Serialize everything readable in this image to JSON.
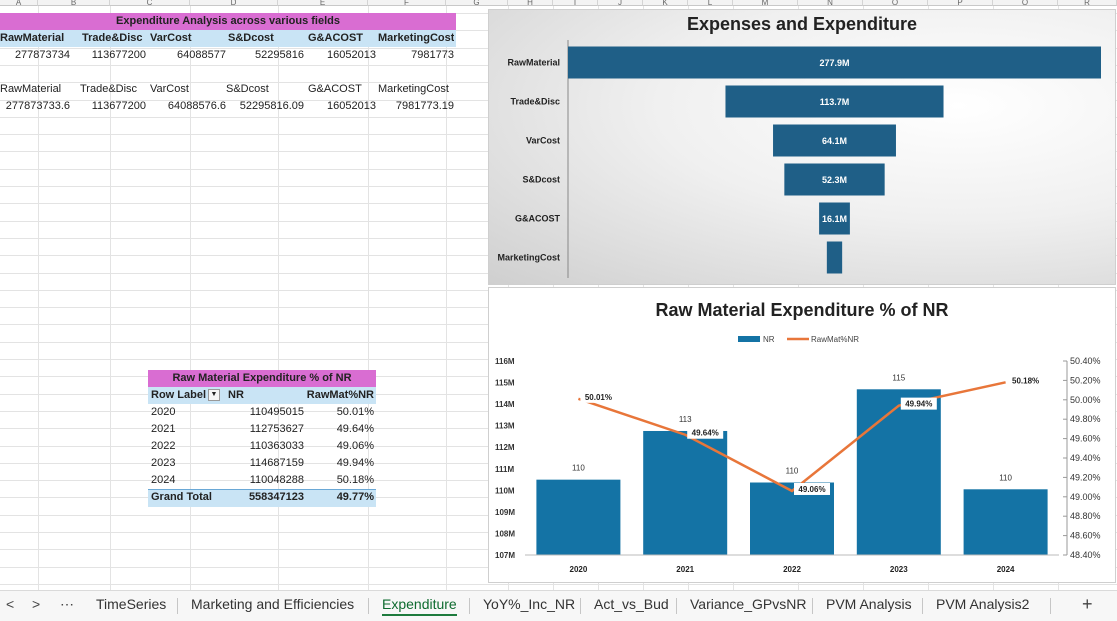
{
  "columns": [
    "A",
    "B",
    "C",
    "D",
    "E",
    "F",
    "G",
    "H",
    "I",
    "J",
    "K",
    "L",
    "M",
    "N",
    "O",
    "P",
    "Q",
    "R"
  ],
  "table1": {
    "title": "Expenditure Analysis across various fields",
    "headers": [
      "RawMaterial",
      "Trade&Disc",
      "VarCost",
      "S&Dcost",
      "G&ACOST",
      "MarketingCost"
    ],
    "values": [
      "277873734",
      "113677200",
      "64088577",
      "52295816",
      "16052013",
      "7981773"
    ]
  },
  "table2": {
    "headers": [
      "RawMaterial",
      "Trade&Disc",
      "VarCost",
      "S&Dcost",
      "G&ACOST",
      "MarketingCost"
    ],
    "values": [
      "277873733.6",
      "113677200",
      "64088576.6",
      "52295816.09",
      "16052013",
      "7981773.19"
    ]
  },
  "pivot": {
    "title": "Raw Material Expenditure % of NR",
    "col_row_label": "Row Label",
    "col_nr": "NR",
    "col_pct": "RawMat%NR",
    "rows": [
      {
        "year": "2020",
        "nr": "110495015",
        "pct": "50.01%"
      },
      {
        "year": "2021",
        "nr": "112753627",
        "pct": "49.64%"
      },
      {
        "year": "2022",
        "nr": "110363033",
        "pct": "49.06%"
      },
      {
        "year": "2023",
        "nr": "114687159",
        "pct": "49.94%"
      },
      {
        "year": "2024",
        "nr": "110048288",
        "pct": "50.18%"
      }
    ],
    "total_label": "Grand Total",
    "total_nr": "558347123",
    "total_pct": "49.77%"
  },
  "chart_data": [
    {
      "type": "bar",
      "orientation": "horizontal-funnel",
      "title": "Expenses and Expenditure",
      "categories": [
        "RawMaterial",
        "Trade&Disc",
        "VarCost",
        "S&Dcost",
        "G&ACOST",
        "MarketingCost"
      ],
      "values": [
        277873734,
        113677200,
        64088577,
        52295816,
        16052013,
        7981773
      ],
      "data_labels": [
        "277.9M",
        "113.7M",
        "64.1M",
        "52.3M",
        "16.1M",
        ""
      ],
      "bar_color": "#1f5f87"
    },
    {
      "type": "bar",
      "title": "Raw Material Expenditure % of NR",
      "categories": [
        "2020",
        "2021",
        "2022",
        "2023",
        "2024"
      ],
      "series": [
        {
          "name": "NR",
          "kind": "bar",
          "axis": "left",
          "values": [
            110495015,
            112753627,
            110363033,
            114687159,
            110048288
          ],
          "labels": [
            "110",
            "113",
            "110",
            "115",
            "110"
          ],
          "color": "#1473a5"
        },
        {
          "name": "RawMat%NR",
          "kind": "line",
          "axis": "right",
          "values": [
            50.01,
            49.64,
            49.06,
            49.94,
            50.18
          ],
          "labels": [
            "50.01%",
            "49.64%",
            "49.06%",
            "49.94%",
            "50.18%"
          ],
          "color": "#e8763a"
        }
      ],
      "y_left": {
        "min": 107000000,
        "max": 116000000,
        "step": 1000000,
        "tick_labels": [
          "107M",
          "108M",
          "109M",
          "110M",
          "111M",
          "112M",
          "113M",
          "114M",
          "115M",
          "116M"
        ]
      },
      "y_right": {
        "min": 48.4,
        "max": 50.4,
        "step": 0.2,
        "tick_labels": [
          "48.40%",
          "48.60%",
          "48.80%",
          "49.00%",
          "49.20%",
          "49.40%",
          "49.60%",
          "49.80%",
          "50.00%",
          "50.20%",
          "50.40%"
        ]
      },
      "legend": "top"
    }
  ],
  "tabs": {
    "nav_prev": "<",
    "nav_next": ">",
    "more": "⋯",
    "items": [
      "TimeSeries",
      "Marketing and Efficiencies",
      "Expenditure",
      "YoY%_Inc_NR",
      "Act_vs_Bud",
      "Variance_GPvsNR",
      "PVM Analysis",
      "PVM Analysis2"
    ],
    "active": "Expenditure",
    "add": "+"
  }
}
